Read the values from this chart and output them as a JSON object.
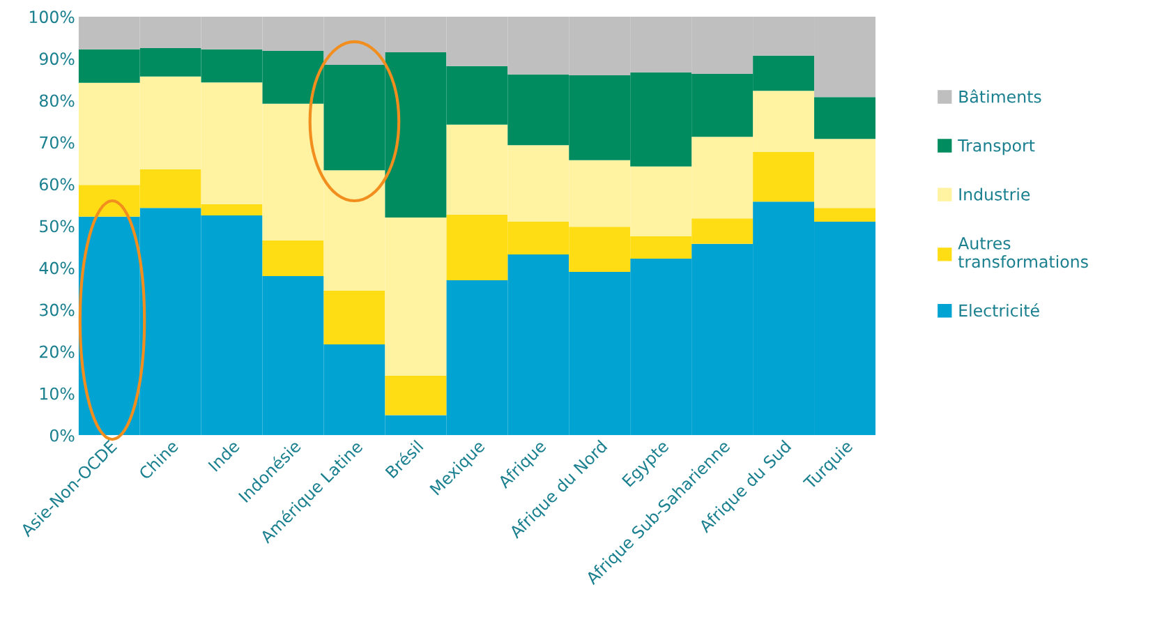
{
  "chart_data": {
    "type": "bar",
    "stacked": true,
    "legend": "right",
    "categories": [
      "Asie-Non-OCDE",
      "Chine",
      "Inde",
      "Indonésie",
      "Amérique Latine",
      "Brésil",
      "Mexique",
      "Afrique",
      "Afrique du Nord",
      "Egypte",
      "Afrique Sub-Saharienne",
      "Afrique du Sud",
      "Turquie"
    ],
    "series": [
      {
        "name": "Electricité",
        "color": "#00a3d2",
        "values": [
          52.2,
          54.3,
          52.5,
          38.0,
          21.7,
          4.8,
          37.0,
          43.2,
          39.0,
          42.2,
          45.7,
          55.8,
          51.0
        ]
      },
      {
        "name": "Autres transformations",
        "color": "#ffdd15",
        "values": [
          7.6,
          9.2,
          2.7,
          8.5,
          12.8,
          9.4,
          15.7,
          7.8,
          10.8,
          5.3,
          6.1,
          11.9,
          3.3
        ]
      },
      {
        "name": "Industrie",
        "color": "#fff2a0",
        "values": [
          24.4,
          22.2,
          29.1,
          32.7,
          28.8,
          37.8,
          21.5,
          18.3,
          15.9,
          16.7,
          19.5,
          14.6,
          16.5
        ]
      },
      {
        "name": "Transport",
        "color": "#008c5f",
        "values": [
          8.0,
          6.8,
          7.9,
          12.6,
          25.2,
          39.5,
          14.0,
          16.9,
          20.3,
          22.5,
          15.0,
          8.4,
          10.0
        ]
      },
      {
        "name": "Bâtiments",
        "color": "#bfbfbf",
        "values": [
          7.8,
          7.5,
          7.8,
          8.2,
          11.5,
          8.5,
          11.8,
          13.8,
          14.0,
          13.3,
          13.7,
          9.3,
          19.2
        ]
      }
    ],
    "ylim": [
      0,
      100
    ],
    "yticks": [
      {
        "value": 0,
        "label": "0%"
      },
      {
        "value": 10,
        "label": "10%"
      },
      {
        "value": 20,
        "label": "20%"
      },
      {
        "value": 30,
        "label": "30%"
      },
      {
        "value": 40,
        "label": "40%"
      },
      {
        "value": 50,
        "label": "50%"
      },
      {
        "value": 60,
        "label": "60%"
      },
      {
        "value": 70,
        "label": "70%"
      },
      {
        "value": 80,
        "label": "80%"
      },
      {
        "value": 90,
        "label": "90%"
      },
      {
        "value": 100,
        "label": "100%"
      }
    ],
    "grid": false
  }
}
